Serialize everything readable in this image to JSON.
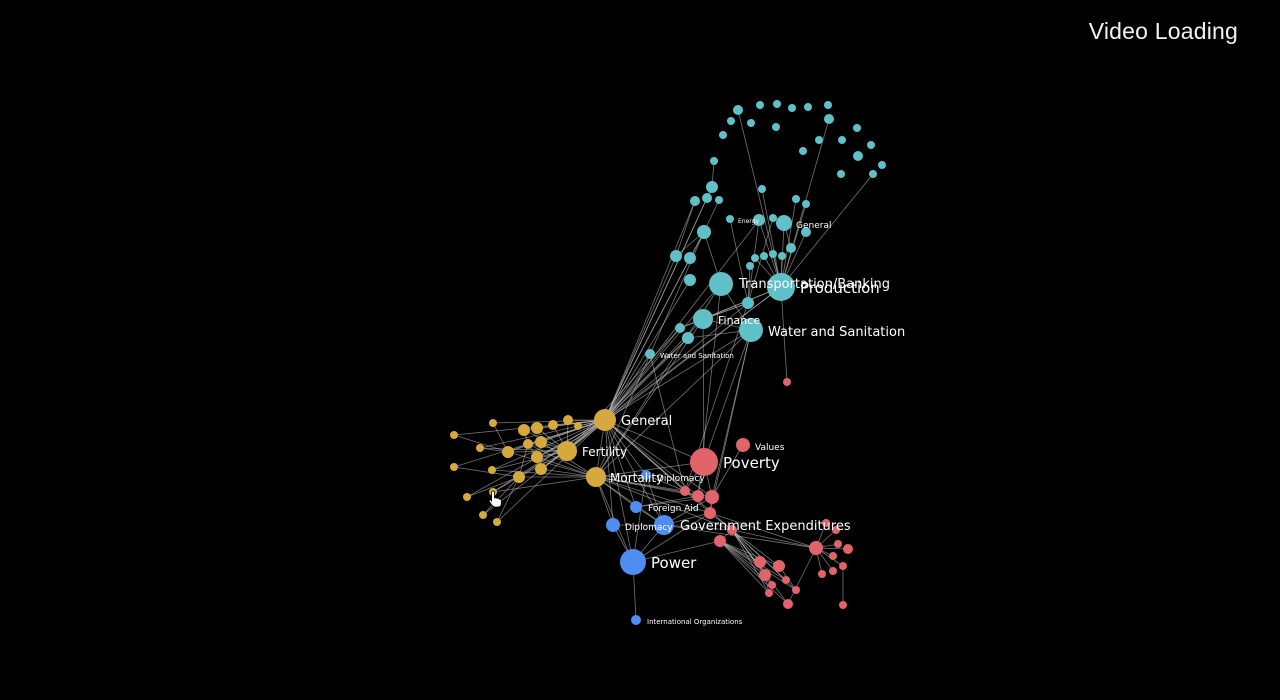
{
  "status": {
    "text": "Video Loading"
  },
  "colors": {
    "teal": "#5fc0c8",
    "gold": "#d6a93f",
    "red": "#e0646a",
    "blue": "#4f8ef0",
    "background": "#000000"
  },
  "labels": {
    "teal_general": "General",
    "teal_energy": "Energy",
    "teal_transport": "Transportation/Banking",
    "teal_production": "Production",
    "teal_finance": "Finance",
    "teal_water_big": "Water and Sanitation",
    "teal_water_small": "Water and Sanitation",
    "gold_general": "General",
    "gold_fertility": "Fertility",
    "gold_mortality": "Mortality",
    "red_values": "Values",
    "red_poverty": "Poverty",
    "red_gov": "Government Expenditures",
    "blue_diplomacy_top": "Diplomacy",
    "blue_foreign_aid": "Foreign Aid",
    "blue_diplomacy": "Diplomacy",
    "blue_power": "Power",
    "blue_intl": "International Organizations"
  },
  "cursor": {
    "icon": "hand-pointer-icon"
  }
}
